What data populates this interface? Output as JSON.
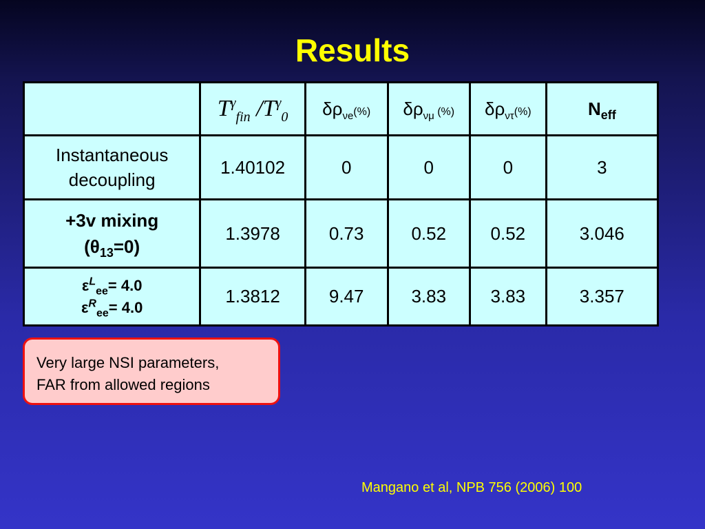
{
  "title": "Results",
  "table": {
    "header": [
      {
        "t1": {
          "base": "T",
          "sup": "γ",
          "sub": "fin"
        },
        "t2": {
          "base": "/T",
          "sup": "γ",
          "sub": "0"
        }
      },
      {
        "base": "δρ",
        "sub": "νe",
        "tail": "(%)"
      },
      {
        "base": "δρ",
        "sub": "νμ",
        "tail": " (%)"
      },
      {
        "base": "δρ",
        "sub": "ντ",
        "tail": "(%)"
      },
      {
        "base": "N",
        "sub": "eff"
      }
    ],
    "rows": [
      {
        "label": [
          "Instantaneous",
          "decoupling"
        ],
        "values": [
          1.40102,
          0,
          0,
          0,
          3
        ]
      },
      {
        "label": [
          {
            "text": "+3v mixing"
          },
          {
            "base": "(θ",
            "sub": "13",
            "tail": "=0)"
          }
        ],
        "values": [
          1.3978,
          0.73,
          0.52,
          0.52,
          3.046
        ]
      },
      {
        "label": [
          {
            "base": "ε",
            "sup": "L",
            "sub": "ee",
            "tail": "= 4.0"
          },
          {
            "base": "ε",
            "sup": "R",
            "sub": "ee",
            "tail": "= 4.0"
          }
        ],
        "values": [
          1.3812,
          9.47,
          3.83,
          3.83,
          3.357
        ]
      }
    ]
  },
  "note": [
    "Very large NSI parameters,",
    "FAR from allowed regions"
  ],
  "citation": "Mangano et al, NPB 756 (2006) 100"
}
